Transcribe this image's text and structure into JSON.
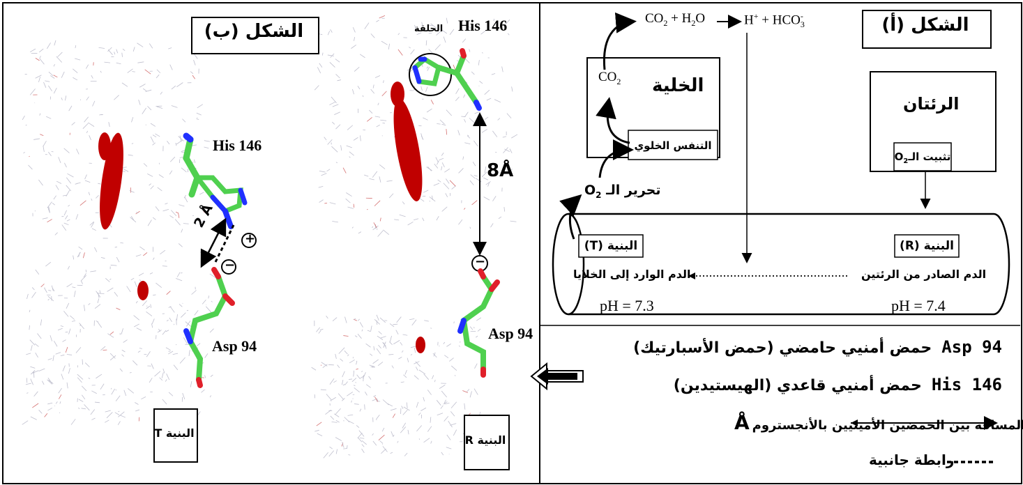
{
  "figure_a": {
    "title": "الشكل (أ)",
    "cell_box": "الخلية",
    "co2_in_cell": "CO",
    "co2_sub": "2",
    "respiration": "التنفس الخلوي",
    "lungs": "الرئتان",
    "o2_fixation": "تثبيت الـO",
    "o2_fixation_sub": "2",
    "o2_release": "تحرير الـ O",
    "o2_release_sub": "2",
    "reaction": {
      "co2": "CO",
      "co2_sub": "2",
      "plus_h2o": "+ H",
      "h2o_sub": "2",
      "h2o_o": "O",
      "h_plus": "H",
      "h_sup": "+",
      "hco3": "+ HCO",
      "hco3_sub": "3",
      "hco3_sup": "-"
    },
    "structure_t": "البنية (T)",
    "structure_r": "البنية (R)",
    "blood_out": "الدم الصادر من الرئتين",
    "blood_in": "الدم الوارد إلى الخلايا",
    "ph_cells": "pH = 7.3",
    "ph_lungs": "pH = 7.4"
  },
  "legend": {
    "asp_code": "Asp 94",
    "asp_desc": "حمض أمنيي حامضي (حمض الأسبارتيك)",
    "his_code": "His 146",
    "his_desc": "حمض أمنيي قاعدي (الهيستيدين)",
    "distance_desc": "المسافة بين الحمضين الأمينيين بالأنجستروم",
    "angstrom": "Å",
    "side_bond_desc": "رابطة جانبية"
  },
  "figure_b": {
    "title": "الشكل (ب)",
    "his_r": "His 146",
    "asp_r": "Asp 94",
    "his_t": "His 146",
    "asp_t": "Asp 94",
    "ring_label": "الحلقة",
    "distance_r": "8Å",
    "distance_t": "2 Å",
    "structure_t_box": "البنية T",
    "structure_r_box": "البنية R",
    "minus": "−",
    "plus": "+"
  },
  "colors": {
    "heme": "#c00000",
    "carbon": "#4fd04f",
    "nitrogen": "#2030ff",
    "oxygen": "#e0202a"
  }
}
